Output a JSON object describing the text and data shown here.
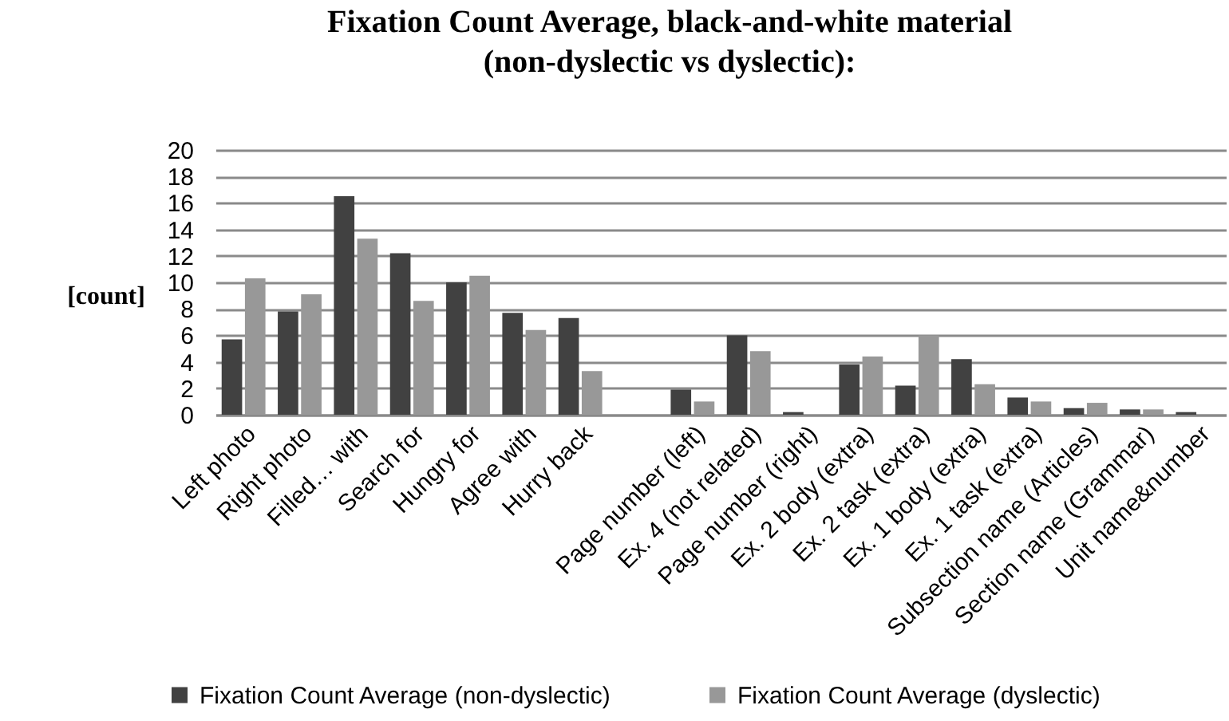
{
  "chart_data": {
    "type": "bar",
    "title": "Fixation Count Average, black-and-white material\n(non-dyslectic vs dyslectic):",
    "ylabel": "[count]",
    "categories": [
      "Left photo",
      "Right photo",
      "Filled… with",
      "Search for",
      "Hungry for",
      "Agree with",
      "Hurry back",
      null,
      "Page number (left)",
      "Ex. 4 (not related)",
      "Page number (right)",
      "Ex. 2 body (extra)",
      "Ex. 2 task (extra)",
      "Ex. 1 body (extra)",
      "Ex. 1 task (extra)",
      "Subsection name (Articles)",
      "Section name (Grammar)",
      "Unit name&number"
    ],
    "series": [
      {
        "name": "Fixation Count Average (non-dyslectic)",
        "color": "#414141",
        "values": [
          5.7,
          7.8,
          16.5,
          12.2,
          10.0,
          7.7,
          7.3,
          null,
          1.9,
          6.0,
          0.2,
          3.8,
          2.2,
          4.2,
          1.3,
          0.5,
          0.4,
          0.2
        ]
      },
      {
        "name": "Fixation Count Average (dyslectic)",
        "color": "#989898",
        "values": [
          10.3,
          9.1,
          13.3,
          8.6,
          10.5,
          6.4,
          3.3,
          null,
          1.0,
          4.8,
          null,
          4.4,
          6.0,
          2.3,
          1.0,
          0.9,
          0.4,
          null
        ]
      }
    ],
    "ylim": [
      0,
      20
    ],
    "yticks": [
      0,
      2,
      4,
      6,
      8,
      10,
      12,
      14,
      16,
      18,
      20
    ],
    "grid": "y",
    "legend": "bottom"
  }
}
